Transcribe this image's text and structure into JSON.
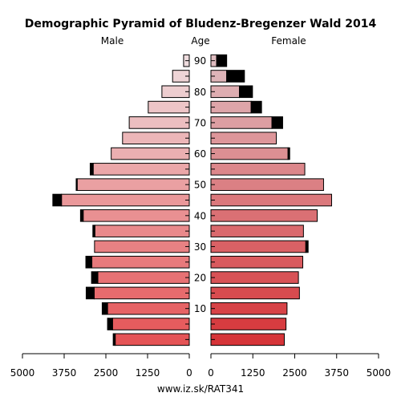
{
  "chart_data": {
    "type": "bar",
    "title": "Demographic Pyramid of Bludenz-Bregenzer Wald 2014",
    "left_label": "Male",
    "center_label": "Age",
    "right_label": "Female",
    "footer": "www.iz.sk/RAT341",
    "age_ticks": [
      "10",
      "20",
      "30",
      "40",
      "50",
      "60",
      "70",
      "80",
      "90"
    ],
    "x_ticks_left": [
      "5000",
      "3750",
      "2500",
      "1250",
      "0"
    ],
    "x_ticks_right": [
      "0",
      "1250",
      "2500",
      "3750",
      "5000"
    ],
    "xlim": [
      0,
      5000
    ],
    "age_groups": [
      "0-4",
      "5-9",
      "10-14",
      "15-19",
      "20-24",
      "25-29",
      "30-34",
      "35-39",
      "40-44",
      "45-49",
      "50-54",
      "55-59",
      "60-64",
      "65-69",
      "70-74",
      "75-79",
      "80-84",
      "85-89",
      "90-94"
    ],
    "series": [
      {
        "name": "Male",
        "values": [
          2220,
          2300,
          2450,
          2850,
          2740,
          2920,
          2840,
          2830,
          3180,
          3830,
          3360,
          2880,
          2340,
          2000,
          1800,
          1230,
          820,
          500,
          170
        ],
        "excess": [
          60,
          150,
          160,
          240,
          190,
          180,
          0,
          60,
          80,
          260,
          30,
          90,
          0,
          0,
          0,
          0,
          0,
          0,
          0
        ]
      },
      {
        "name": "Female",
        "values": [
          2190,
          2240,
          2270,
          2640,
          2610,
          2740,
          2830,
          2760,
          3170,
          3600,
          3360,
          2800,
          2300,
          1950,
          1820,
          1200,
          850,
          470,
          170
        ],
        "excess": [
          0,
          0,
          0,
          0,
          0,
          0,
          70,
          0,
          0,
          0,
          0,
          0,
          50,
          0,
          320,
          310,
          390,
          530,
          300
        ]
      }
    ]
  }
}
